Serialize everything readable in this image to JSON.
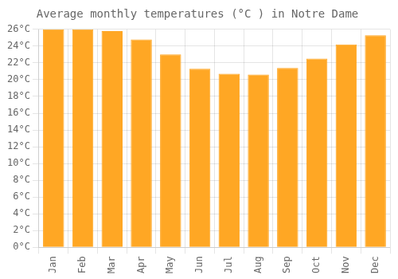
{
  "chart_data": {
    "type": "bar",
    "title": "Average monthly temperatures (°C ) in Notre Dame",
    "categories": [
      "Jan",
      "Feb",
      "Mar",
      "Apr",
      "May",
      "Jun",
      "Jul",
      "Aug",
      "Sep",
      "Oct",
      "Nov",
      "Dec"
    ],
    "values": [
      26.0,
      26.0,
      25.8,
      24.8,
      23.0,
      21.3,
      20.7,
      20.6,
      21.4,
      22.5,
      24.2,
      25.3
    ],
    "color": "#FFA724",
    "ylim": [
      0,
      26
    ],
    "yticks": [
      {
        "value": 0,
        "label": "0°C"
      },
      {
        "value": 2,
        "label": "2°C"
      },
      {
        "value": 4,
        "label": "4°C"
      },
      {
        "value": 6,
        "label": "6°C"
      },
      {
        "value": 8,
        "label": "8°C"
      },
      {
        "value": 10,
        "label": "10°C"
      },
      {
        "value": 12,
        "label": "12°C"
      },
      {
        "value": 14,
        "label": "14°C"
      },
      {
        "value": 16,
        "label": "16°C"
      },
      {
        "value": 18,
        "label": "18°C"
      },
      {
        "value": 20,
        "label": "20°C"
      },
      {
        "value": 22,
        "label": "22°C"
      },
      {
        "value": 24,
        "label": "24°C"
      },
      {
        "value": 26,
        "label": "26°C"
      }
    ],
    "grid": true
  }
}
